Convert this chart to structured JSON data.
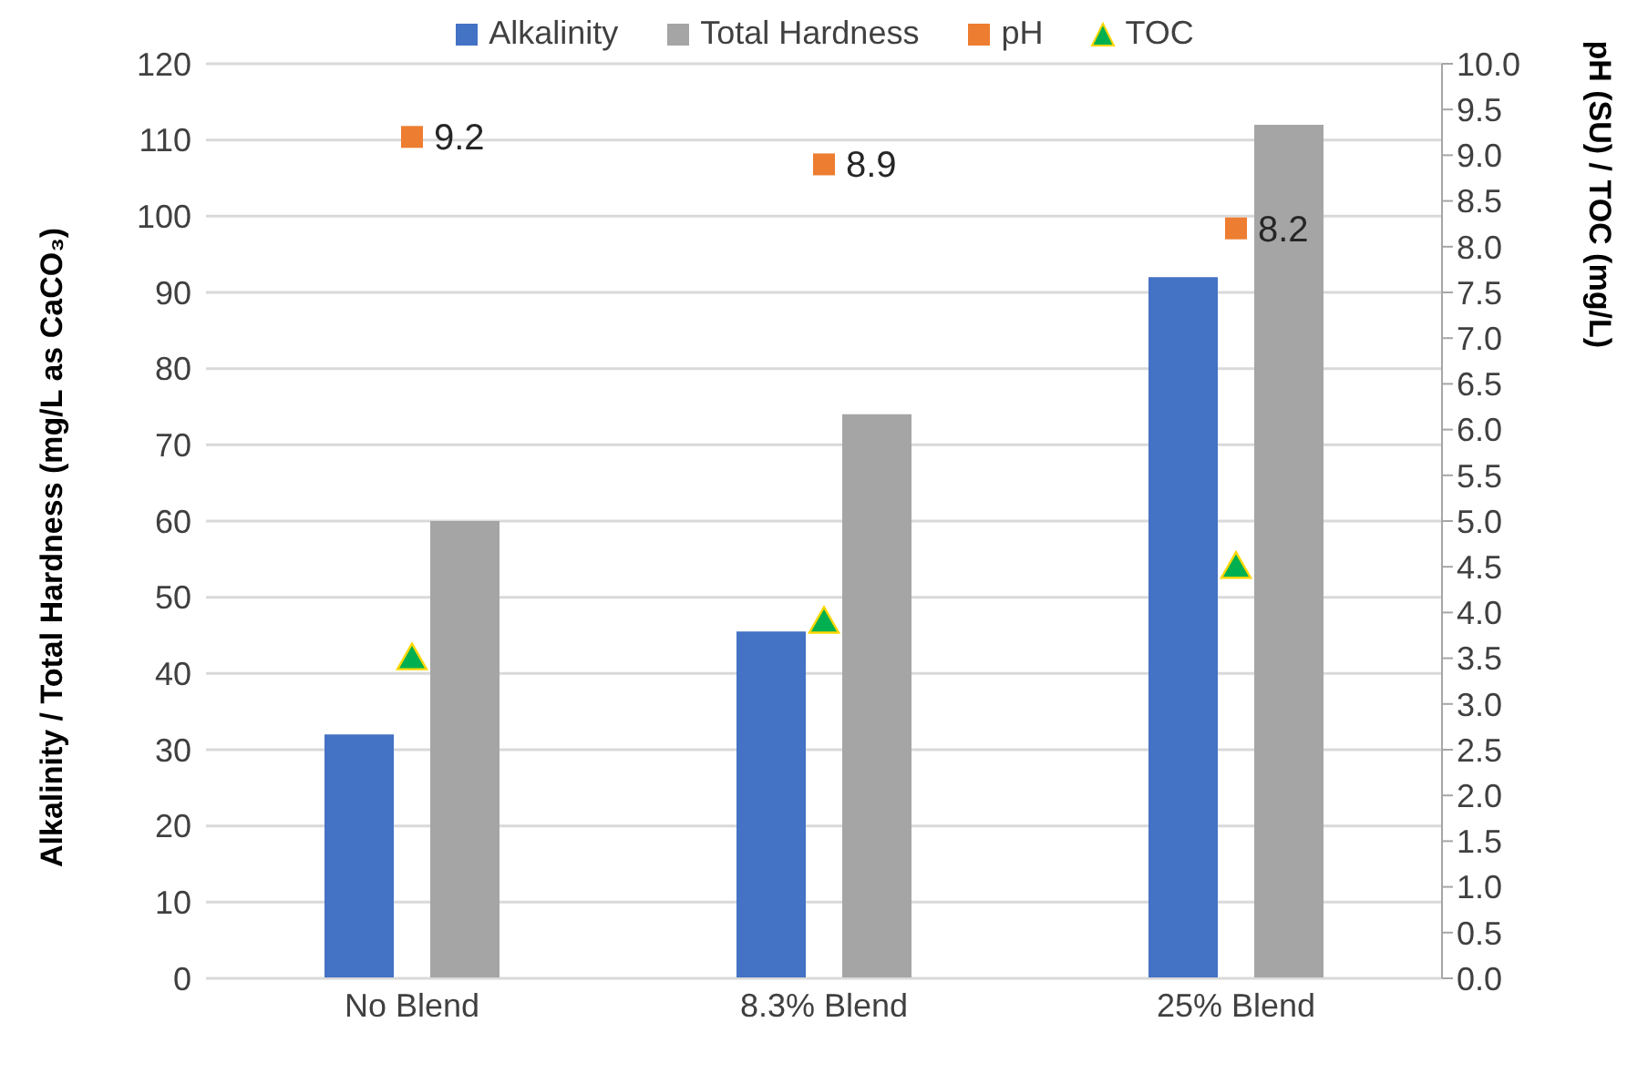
{
  "chart_data": {
    "type": "bar",
    "categories": [
      "No Blend",
      "8.3% Blend",
      "25% Blend"
    ],
    "ylabel": "Alkalinity / Total Hardness (mg/L as CaCO₃)",
    "y2label": "pH (SU) / TOC (mg/L)",
    "ylim": [
      0,
      120
    ],
    "yticks": [
      0,
      10,
      20,
      30,
      40,
      50,
      60,
      70,
      80,
      90,
      100,
      110,
      120
    ],
    "y2lim": [
      0,
      10
    ],
    "y2ticks": [
      {
        "value": 0,
        "label": "0.0"
      },
      {
        "value": 0.5,
        "label": "0.5"
      },
      {
        "value": 1,
        "label": "1.0"
      },
      {
        "value": 1.5,
        "label": "1.5"
      },
      {
        "value": 2,
        "label": "2.0"
      },
      {
        "value": 2.5,
        "label": "2.5"
      },
      {
        "value": 3,
        "label": "3.0"
      },
      {
        "value": 3.5,
        "label": "3.5"
      },
      {
        "value": 4,
        "label": "4.0"
      },
      {
        "value": 4.5,
        "label": "4.5"
      },
      {
        "value": 5,
        "label": "5.0"
      },
      {
        "value": 5.5,
        "label": "5.5"
      },
      {
        "value": 6,
        "label": "6.0"
      },
      {
        "value": 6.5,
        "label": "6.5"
      },
      {
        "value": 7,
        "label": "7.0"
      },
      {
        "value": 7.5,
        "label": "7.5"
      },
      {
        "value": 8,
        "label": "8.0"
      },
      {
        "value": 8.5,
        "label": "8.5"
      },
      {
        "value": 9,
        "label": "9.0"
      },
      {
        "value": 9.5,
        "label": "9.5"
      },
      {
        "value": 10,
        "label": "10.0"
      }
    ],
    "grid": "y",
    "legend": "top",
    "series": [
      {
        "name": "Alkalinity",
        "color": "#4472c4",
        "values": [
          32,
          45.5,
          92
        ]
      },
      {
        "name": "Total Hardness",
        "color": "#a5a5a5",
        "values": [
          60,
          74,
          112
        ]
      },
      {
        "name": "pH",
        "type": "scatter",
        "axis": "y2",
        "marker": "square",
        "color": "#ed7d31",
        "values": [
          9.2,
          8.9,
          8.2
        ],
        "value_labels": [
          "9.2",
          "8.9",
          "8.2"
        ]
      },
      {
        "name": "TOC",
        "type": "scatter",
        "axis": "y2",
        "marker": "triangle",
        "color": "#00b050",
        "values": [
          3.5,
          3.9,
          4.5
        ]
      }
    ]
  }
}
